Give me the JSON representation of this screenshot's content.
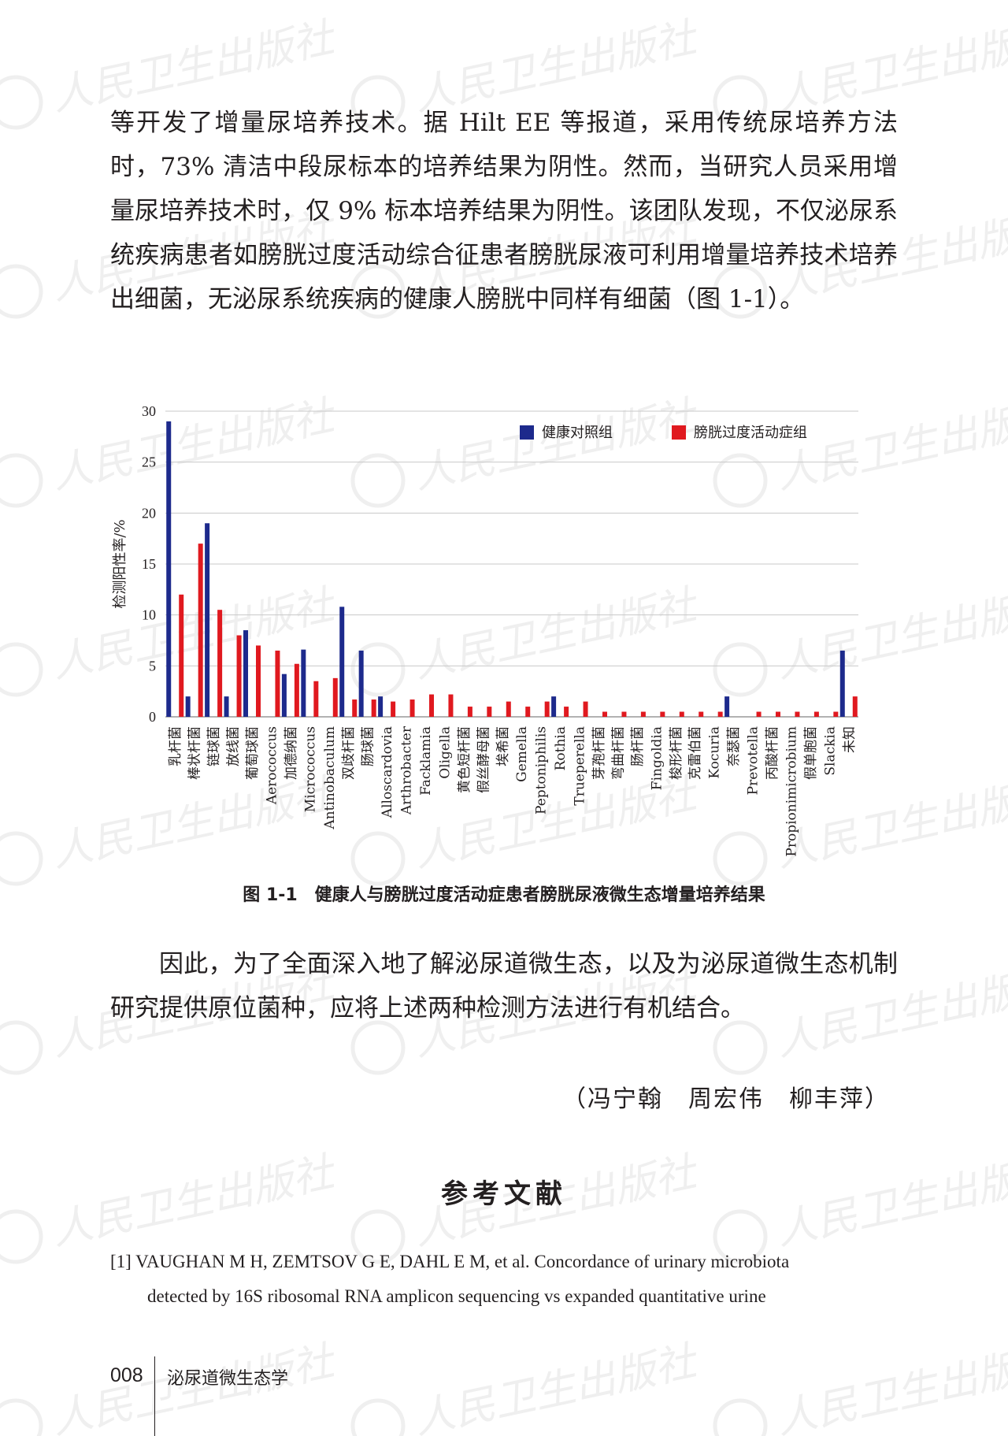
{
  "body": {
    "paragraph1": "等开发了增量尿培养技术。据 Hilt EE 等报道，采用传统尿培养方法时，73% 清洁中段尿标本的培养结果为阴性。然而，当研究人员采用增量尿培养技术时，仅 9% 标本培养结果为阴性。该团队发现，不仅泌尿系统疾病患者如膀胱过度活动综合征患者膀胱尿液可利用增量培养技术培养出细菌，无泌尿系统疾病的健康人膀胱中同样有细菌（图 1-1）。",
    "paragraph2": "因此，为了全面深入地了解泌尿道微生态，以及为泌尿道微生态机制研究提供原位菌种，应将上述两种检测方法进行有机结合。",
    "authors": "（冯宁翰　周宏伟　柳丰萍）"
  },
  "figure": {
    "caption": "图 1-1　健康人与膀胱过度活动症患者膀胱尿液微生态增量培养结果"
  },
  "chart_data": {
    "type": "bar",
    "ylabel": "检测阳性率/%",
    "xlabel": "",
    "ylim": [
      0,
      30
    ],
    "yticks": [
      0,
      5,
      10,
      15,
      20,
      25,
      30
    ],
    "grid": true,
    "legend_position": "top-right",
    "categories": [
      "乳杆菌",
      "棒状杆菌",
      "链球菌",
      "放线菌",
      "葡萄球菌",
      "Aerococcus",
      "加德纳菌",
      "Micrococcus",
      "Antinobaculum",
      "双歧杆菌",
      "肠球菌",
      "Alloscardovia",
      "Arthrobacter",
      "Facklamia",
      "Oligella",
      "黄色短杆菌",
      "假丝酵母菌",
      "埃希菌",
      "Gemella",
      "Peptoniphilis",
      "Rothia",
      "Trueperella",
      "芽孢杆菌",
      "弯曲杆菌",
      "肠杆菌",
      "Fingoldia",
      "梭形杆菌",
      "克雷伯菌",
      "Kocuria",
      "奈瑟菌",
      "Prevotella",
      "丙酸杆菌",
      "Propionimicrobium",
      "假单胞菌",
      "Slackia",
      "未知"
    ],
    "series": [
      {
        "name": "健康对照组",
        "color": "#1d2a8c",
        "values": [
          29,
          2,
          19,
          2,
          8.5,
          0,
          4.2,
          6.6,
          0,
          10.8,
          6.5,
          2,
          0,
          0,
          0,
          0,
          0,
          0,
          0,
          0,
          2,
          0,
          0,
          0,
          0,
          0,
          0,
          0,
          0,
          2,
          0,
          0,
          0,
          0,
          0,
          6.5
        ]
      },
      {
        "name": "膀胱过度活动症组",
        "color": "#e0191f",
        "values": [
          12,
          17,
          10.5,
          8,
          7,
          6.5,
          5.2,
          3.5,
          3.8,
          1.7,
          1.7,
          1.5,
          1.7,
          2.2,
          2.2,
          1,
          1,
          1.5,
          1,
          1.5,
          1,
          1.5,
          0.5,
          0.5,
          0.5,
          0.5,
          0.5,
          0.5,
          0.5,
          0,
          0.5,
          0.5,
          0.5,
          0.5,
          0.5,
          2
        ]
      }
    ]
  },
  "references": {
    "ref1_num": "[1]",
    "ref1_line1": "VAUGHAN M H, ZEMTSOV G E, DAHL E M, et al. Concordance of urinary microbiota",
    "ref1_line2": "detected by 16S ribosomal RNA amplicon sequencing vs expanded quantitative urine",
    "title": "参考文献"
  },
  "footer": {
    "page_number": "008",
    "book_title": "泌尿道微生态学"
  },
  "watermark": {
    "text": "人民卫生出版社",
    "color": "#efefef"
  }
}
